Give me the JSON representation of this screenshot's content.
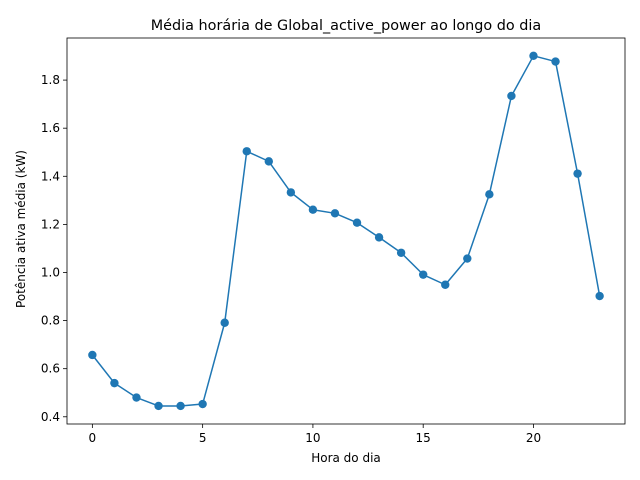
{
  "chart_data": {
    "type": "line",
    "title": "Média horária de Global_active_power ao longo do dia",
    "xlabel": "Hora do dia",
    "ylabel": "Potência ativa média (kW)",
    "x": [
      0,
      1,
      2,
      3,
      4,
      5,
      6,
      7,
      8,
      9,
      10,
      11,
      12,
      13,
      14,
      15,
      16,
      17,
      18,
      19,
      20,
      21,
      22,
      23
    ],
    "series": [
      {
        "values": [
          0.657,
          0.54,
          0.48,
          0.445,
          0.445,
          0.453,
          0.791,
          1.504,
          1.462,
          1.333,
          1.261,
          1.246,
          1.207,
          1.146,
          1.082,
          0.991,
          0.949,
          1.058,
          1.325,
          1.734,
          1.901,
          1.877,
          1.411,
          0.902
        ],
        "color": "#1f77b4",
        "marker": "circle"
      }
    ],
    "xlim": [
      -1.15,
      24.15
    ],
    "ylim": [
      0.37,
      1.975
    ],
    "xticks": [
      0,
      5,
      10,
      15,
      20
    ],
    "xtick_labels": [
      "0",
      "5",
      "10",
      "15",
      "20"
    ],
    "yticks": [
      0.4,
      0.6,
      0.8,
      1.0,
      1.2,
      1.4,
      1.6,
      1.8
    ],
    "ytick_labels": [
      "0.4",
      "0.6",
      "0.8",
      "1.0",
      "1.2",
      "1.4",
      "1.6",
      "1.8"
    ],
    "grid": false,
    "legend": "none"
  }
}
